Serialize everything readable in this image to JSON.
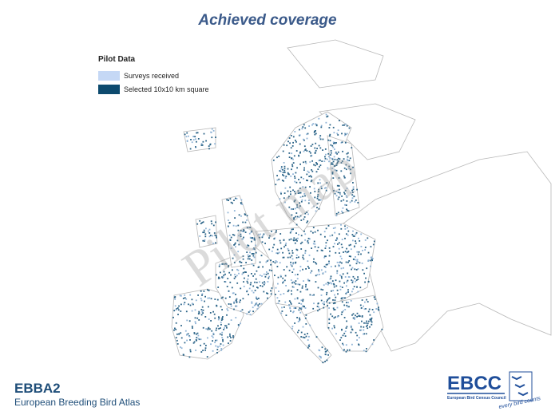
{
  "header": {
    "title": "Achieved coverage"
  },
  "legend": {
    "title": "Pilot Data",
    "items": [
      "Surveys received",
      "Selected 10x10 km square"
    ]
  },
  "watermark": "Pilot map",
  "footer": {
    "title": "EBBA2",
    "subtitle": "European Breeding Bird Atlas"
  },
  "logo": {
    "name": "EBCC",
    "full_name": "European Bird Census Council",
    "slogan": "every bird counts"
  }
}
